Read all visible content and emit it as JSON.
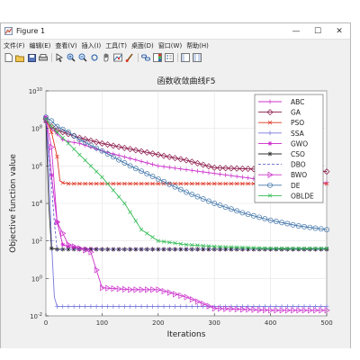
{
  "window": {
    "title": "Figure 1",
    "minimize_glyph": "—",
    "maximize_glyph": "☐",
    "close_glyph": "✕"
  },
  "menu": [
    "文件(F)",
    "编辑(E)",
    "查看(V)",
    "插入(I)",
    "工具(T)",
    "桌面(D)",
    "窗口(W)",
    "帮助(H)"
  ],
  "toolbar_icons": [
    "new-figure-icon",
    "open-file-icon",
    "save-icon",
    "print-icon",
    "edit-plot-icon",
    "zoom-in-icon",
    "zoom-out-icon",
    "rotate-3d-icon",
    "pan-icon",
    "data-cursor-icon",
    "brush-icon",
    "link-icon",
    "colorbar-icon",
    "legend-icon",
    "hide-plot-tools-icon",
    "show-plot-tools-icon"
  ],
  "chart_data": {
    "type": "line",
    "title": "函数收敛曲线F5",
    "xlabel": "Iterations",
    "ylabel": "Objective function value",
    "xlim": [
      0,
      500
    ],
    "ylim_log10": [
      -2,
      10
    ],
    "y_scale": "log",
    "grid": true,
    "legend_position": "top-right",
    "x_ticks": [
      "0",
      "100",
      "200",
      "300",
      "400",
      "500"
    ],
    "y_tick_labels": [
      {
        "base": "10",
        "exp": "-2"
      },
      {
        "base": "10",
        "exp": "0"
      },
      {
        "base": "10",
        "exp": "2"
      },
      {
        "base": "10",
        "exp": "4"
      },
      {
        "base": "10",
        "exp": "6"
      },
      {
        "base": "10",
        "exp": "8"
      },
      {
        "base": "10",
        "exp": "10"
      }
    ],
    "series": [
      {
        "name": "ABC",
        "color": "#cc33cc",
        "marker": "plus",
        "x": [
          0,
          5,
          10,
          20,
          30,
          40,
          60,
          100,
          200,
          300,
          400,
          500
        ],
        "log10_y": [
          8.3,
          8.2,
          8.0,
          7.7,
          7.4,
          7.3,
          7.2,
          6.8,
          6.0,
          5.6,
          5.2,
          5.1
        ]
      },
      {
        "name": "GA",
        "color": "#8b1a4a",
        "marker": "diamond",
        "x": [
          0,
          10,
          20,
          40,
          60,
          100,
          150,
          200,
          250,
          300,
          400,
          500
        ],
        "log10_y": [
          8.5,
          8.1,
          7.9,
          7.7,
          7.5,
          7.2,
          6.9,
          6.6,
          6.3,
          5.9,
          5.8,
          5.7
        ]
      },
      {
        "name": "PSO",
        "color": "#dd3322",
        "marker": "x",
        "x": [
          0,
          10,
          20,
          25,
          30,
          40,
          100,
          200,
          300,
          400,
          500
        ],
        "log10_y": [
          8.5,
          7.8,
          6.5,
          5.2,
          5.1,
          5.05,
          5.05,
          5.05,
          5.05,
          5.05,
          5.05
        ]
      },
      {
        "name": "SSA",
        "color": "#7777dd",
        "marker": "plus",
        "x": [
          0,
          5,
          10,
          15,
          20,
          30,
          100,
          200,
          300,
          400,
          500
        ],
        "log10_y": [
          8.6,
          6.0,
          2.0,
          -1.0,
          -1.5,
          -1.5,
          -1.5,
          -1.5,
          -1.5,
          -1.5,
          -1.5
        ]
      },
      {
        "name": "GWO",
        "color": "#cc22cc",
        "marker": "star",
        "x": [
          0,
          10,
          20,
          30,
          40,
          60,
          100,
          200,
          300,
          400,
          500
        ],
        "log10_y": [
          8.6,
          5.5,
          3.0,
          1.8,
          1.7,
          1.6,
          1.55,
          1.55,
          1.55,
          1.55,
          1.55
        ]
      },
      {
        "name": "CSO",
        "color": "#333333",
        "marker": "star",
        "x": [
          0,
          5,
          10,
          20,
          30,
          100,
          200,
          300,
          400,
          500
        ],
        "log10_y": [
          8.4,
          4.0,
          1.6,
          1.55,
          1.55,
          1.55,
          1.55,
          1.55,
          1.55,
          1.55
        ]
      },
      {
        "name": "DBO",
        "color": "#6666cc",
        "marker": "none",
        "x": [
          0,
          5,
          10,
          15,
          20,
          30,
          40,
          100,
          200,
          300,
          400,
          500
        ],
        "log10_y": [
          8.5,
          7.0,
          5.0,
          3.0,
          1.5,
          1.55,
          1.55,
          1.55,
          1.55,
          1.55,
          1.55,
          1.55
        ]
      },
      {
        "name": "BWO",
        "color": "#cc33cc",
        "marker": "triangle",
        "x": [
          0,
          10,
          20,
          40,
          60,
          80,
          100,
          150,
          200,
          250,
          300,
          400,
          500
        ],
        "log10_y": [
          8.5,
          7.0,
          3.0,
          1.8,
          1.6,
          1.4,
          -0.5,
          -0.6,
          -0.6,
          -1.0,
          -1.6,
          -1.7,
          -1.7
        ]
      },
      {
        "name": "DE",
        "color": "#4477aa",
        "marker": "circle",
        "x": [
          0,
          10,
          20,
          40,
          60,
          100,
          150,
          200,
          250,
          300,
          350,
          400,
          450,
          500
        ],
        "log10_y": [
          8.6,
          8.4,
          8.1,
          7.8,
          7.4,
          6.8,
          6.0,
          5.3,
          4.6,
          4.0,
          3.5,
          3.1,
          2.8,
          2.6
        ]
      },
      {
        "name": "OBLDE",
        "color": "#33bb55",
        "marker": "x",
        "x": [
          0,
          10,
          20,
          40,
          60,
          100,
          140,
          170,
          200,
          250,
          300,
          400,
          500
        ],
        "log10_y": [
          8.5,
          8.1,
          7.8,
          7.2,
          6.6,
          5.4,
          4.0,
          2.6,
          2.0,
          1.8,
          1.7,
          1.6,
          1.6
        ]
      }
    ]
  }
}
